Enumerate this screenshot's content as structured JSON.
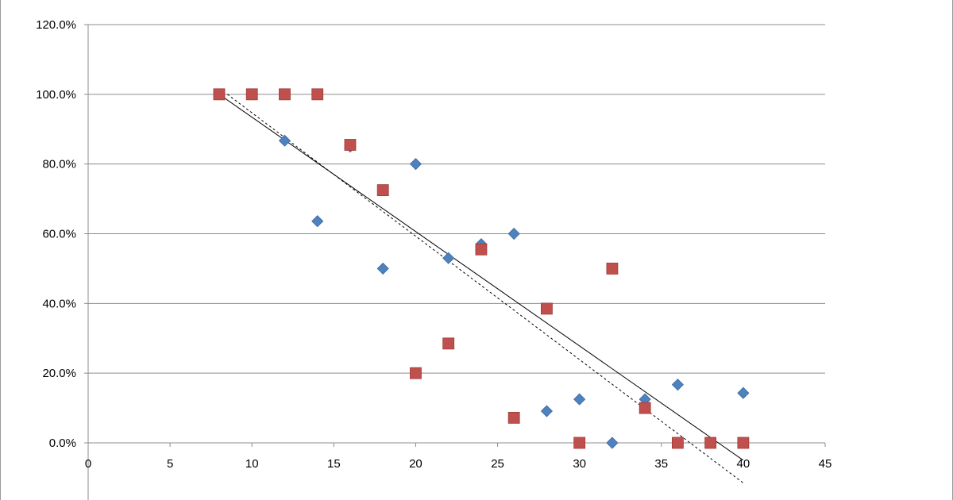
{
  "chart_data": {
    "type": "scatter",
    "title": "",
    "xlabel": "",
    "ylabel": "",
    "xlim": [
      0,
      45
    ],
    "ylim": [
      0,
      1.2
    ],
    "x_ticks": [
      0,
      5,
      10,
      15,
      20,
      25,
      30,
      35,
      40,
      45
    ],
    "x_tick_labels": [
      "0",
      "5",
      "10",
      "15",
      "20",
      "25",
      "30",
      "35",
      "40",
      "45"
    ],
    "y_ticks": [
      0,
      0.2,
      0.4,
      0.6,
      0.8,
      1.0,
      1.2
    ],
    "y_tick_labels": [
      "0.0%",
      "20.0%",
      "40.0%",
      "60.0%",
      "80.0%",
      "100.0%",
      "120.0%"
    ],
    "grid": "horizontal",
    "legend": "none",
    "series": [
      {
        "marker": "diamond",
        "color": "#4f81bd",
        "points": [
          [
            8,
            1.0
          ],
          [
            12,
            0.867
          ],
          [
            14,
            0.636
          ],
          [
            16,
            0.85
          ],
          [
            18,
            0.5
          ],
          [
            20,
            0.8
          ],
          [
            22,
            0.53
          ],
          [
            24,
            0.57
          ],
          [
            26,
            0.6
          ],
          [
            28,
            0.091
          ],
          [
            30,
            0.125
          ],
          [
            32,
            0.0
          ],
          [
            34,
            0.125
          ],
          [
            36,
            0.167
          ],
          [
            40,
            0.143
          ]
        ],
        "trendline": {
          "style": "solid",
          "color": "#000000",
          "from": [
            8,
            1.0
          ],
          "to": [
            40,
            -0.05
          ]
        }
      },
      {
        "marker": "square",
        "color": "#c0504d",
        "points": [
          [
            8,
            1.0
          ],
          [
            10,
            1.0
          ],
          [
            12,
            1.0
          ],
          [
            14,
            1.0
          ],
          [
            16,
            0.855
          ],
          [
            18,
            0.725
          ],
          [
            20,
            0.2
          ],
          [
            22,
            0.285
          ],
          [
            24,
            0.555
          ],
          [
            26,
            0.072
          ],
          [
            28,
            0.385
          ],
          [
            30,
            0.0
          ],
          [
            32,
            0.5
          ],
          [
            34,
            0.1
          ],
          [
            36,
            0.0
          ],
          [
            38,
            0.0
          ],
          [
            40,
            0.0
          ]
        ],
        "trendline": {
          "style": "dashed",
          "color": "#000000",
          "from": [
            8.5,
            1.0
          ],
          "to": [
            40,
            -0.115
          ]
        }
      }
    ]
  }
}
